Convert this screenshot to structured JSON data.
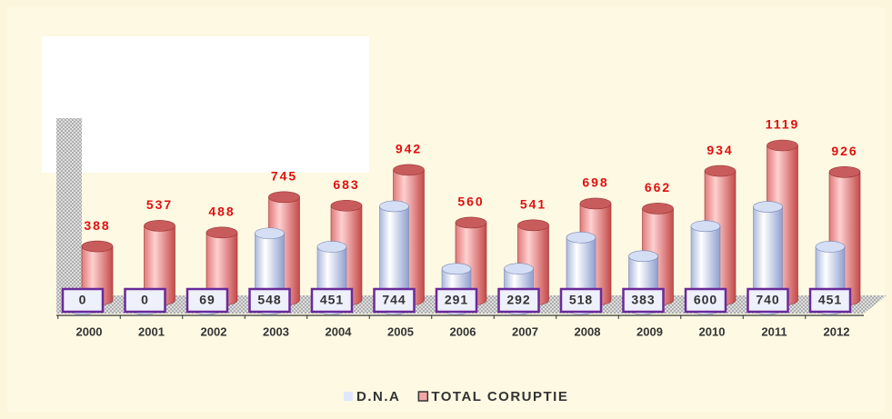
{
  "chart_data": {
    "type": "bar3d",
    "categories": [
      "2000",
      "2001",
      "2002",
      "2003",
      "2004",
      "2005",
      "2006",
      "2007",
      "2008",
      "2009",
      "2010",
      "2011",
      "2012"
    ],
    "series": [
      {
        "name": "D.N.A",
        "color": "#dfe8fb",
        "values": [
          0,
          0,
          69,
          548,
          451,
          744,
          291,
          292,
          518,
          383,
          600,
          740,
          451
        ]
      },
      {
        "name": "TOTAL CORUPTIE",
        "color": "#f3a6a6",
        "values": [
          388,
          537,
          488,
          745,
          683,
          942,
          560,
          541,
          698,
          662,
          934,
          1119,
          926
        ]
      }
    ],
    "legend": "bottom"
  }
}
